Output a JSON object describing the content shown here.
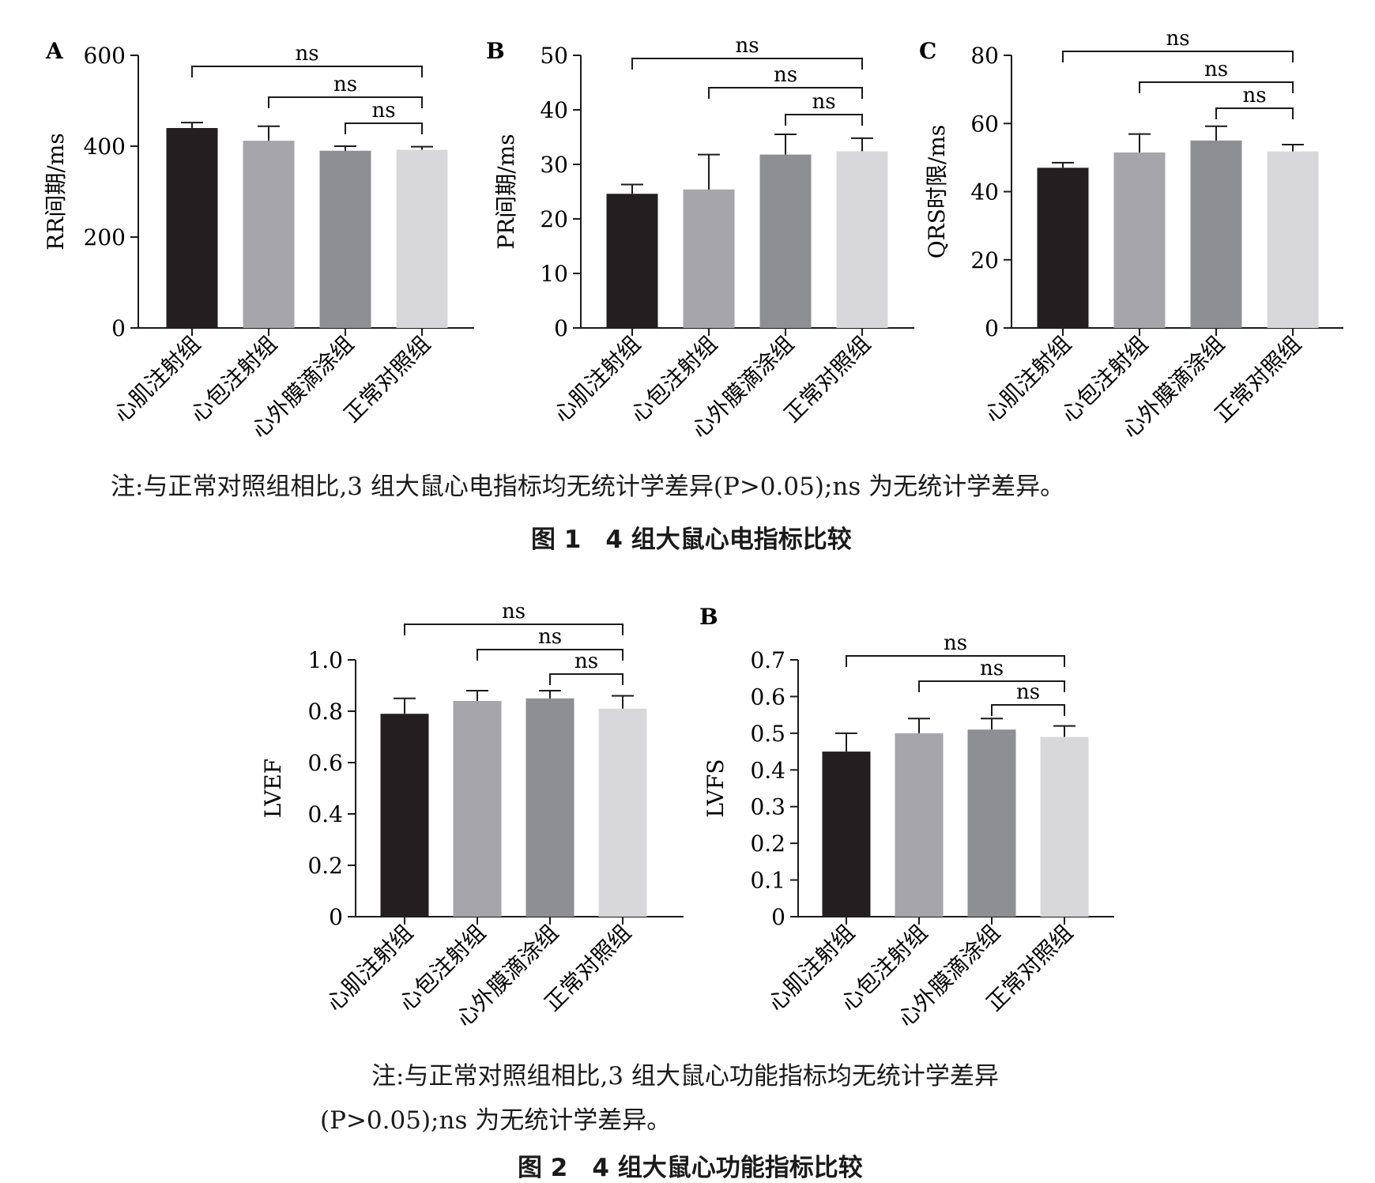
{
  "figure1": {
    "note": "注:与正常对照组相比,3 组大鼠心电指标均无统计学差异(P>0.05);ns 为无统计学差异。",
    "caption": "图 1　4 组大鼠心电指标比较"
  },
  "figure2": {
    "note_line1": "注:与正常对照组相比,3 组大鼠心功能指标均无统计学差异",
    "note_line2": "(P>0.05);ns 为无统计学差异。",
    "caption": "图 2　4 组大鼠心功能指标比较"
  },
  "colors": [
    "#231f20",
    "#a6a6aa",
    "#8e8f92",
    "#d8d8da"
  ],
  "chart_data": [
    {
      "type": "bar",
      "panel": "A",
      "ylabel": "RR间期/ms",
      "categories": [
        "心肌注射组",
        "心包注射组",
        "心外膜滴涂组",
        "正常对照组"
      ],
      "values": [
        440,
        412,
        390,
        392
      ],
      "errors": [
        12,
        32,
        10,
        7
      ],
      "ylim": [
        0,
        600
      ],
      "yticks": [
        "0",
        "200",
        "400",
        "600"
      ],
      "significance": [
        {
          "from": 0,
          "to": 3,
          "label": "ns"
        },
        {
          "from": 1,
          "to": 3,
          "label": "ns"
        },
        {
          "from": 2,
          "to": 3,
          "label": "ns"
        }
      ]
    },
    {
      "type": "bar",
      "panel": "B",
      "ylabel": "PR间期/ms",
      "categories": [
        "心肌注射组",
        "心包注射组",
        "心外膜滴涂组",
        "正常对照组"
      ],
      "values": [
        24.6,
        25.4,
        31.8,
        32.4
      ],
      "errors": [
        1.7,
        6.4,
        3.7,
        2.4
      ],
      "ylim": [
        0,
        50
      ],
      "yticks": [
        "0",
        "10",
        "20",
        "30",
        "40",
        "50"
      ],
      "significance": [
        {
          "from": 0,
          "to": 3,
          "label": "ns"
        },
        {
          "from": 1,
          "to": 3,
          "label": "ns"
        },
        {
          "from": 2,
          "to": 3,
          "label": "ns"
        }
      ]
    },
    {
      "type": "bar",
      "panel": "C",
      "ylabel": "QRS时限/ms",
      "categories": [
        "心肌注射组",
        "心包注射组",
        "心外膜滴涂组",
        "正常对照组"
      ],
      "values": [
        47,
        51.5,
        55,
        51.8
      ],
      "errors": [
        1.5,
        5.4,
        4.2,
        2
      ],
      "ylim": [
        0,
        80
      ],
      "yticks": [
        "0",
        "20",
        "40",
        "60",
        "80"
      ],
      "significance": [
        {
          "from": 0,
          "to": 3,
          "label": "ns"
        },
        {
          "from": 1,
          "to": 3,
          "label": "ns"
        },
        {
          "from": 2,
          "to": 3,
          "label": "ns"
        }
      ]
    },
    {
      "type": "bar",
      "panel": "",
      "ylabel": "LVEF",
      "categories": [
        "心肌注射组",
        "心包注射组",
        "心外膜滴涂组",
        "正常对照组"
      ],
      "values": [
        0.79,
        0.84,
        0.85,
        0.81
      ],
      "errors": [
        0.06,
        0.04,
        0.03,
        0.05
      ],
      "ylim": [
        0,
        1.0
      ],
      "yticks": [
        "0",
        "0.2",
        "0.4",
        "0.6",
        "0.8",
        "1.0"
      ],
      "significance": [
        {
          "from": 0,
          "to": 3,
          "label": "ns"
        },
        {
          "from": 1,
          "to": 3,
          "label": "ns"
        },
        {
          "from": 2,
          "to": 3,
          "label": "ns"
        }
      ]
    },
    {
      "type": "bar",
      "panel": "B",
      "ylabel": "LVFS",
      "categories": [
        "心肌注射组",
        "心包注射组",
        "心外膜滴涂组",
        "正常对照组"
      ],
      "values": [
        0.45,
        0.5,
        0.51,
        0.49
      ],
      "errors": [
        0.05,
        0.04,
        0.03,
        0.03
      ],
      "ylim": [
        0,
        0.7
      ],
      "yticks": [
        "0",
        "0.1",
        "0.2",
        "0.3",
        "0.4",
        "0.5",
        "0.6",
        "0.7"
      ],
      "significance": [
        {
          "from": 0,
          "to": 3,
          "label": "ns"
        },
        {
          "from": 1,
          "to": 3,
          "label": "ns"
        },
        {
          "from": 2,
          "to": 3,
          "label": "ns"
        }
      ]
    }
  ]
}
